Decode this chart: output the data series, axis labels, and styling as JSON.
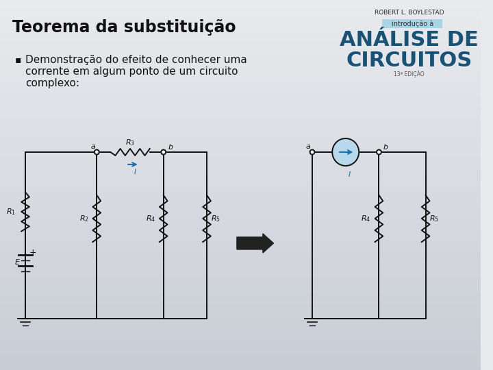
{
  "title": "Teorema da substituição",
  "bullet_text_lines": [
    "Demonstração do efeito de conhecer uma",
    "corrente em algum ponto de um circuito",
    "complexo:"
  ],
  "author": "ROBERT L. BOYLESTAD",
  "book_intro": "introdução à",
  "book_title_line1": "ANÁLISE DE",
  "book_title_line2": "CIRCUITOS",
  "book_edition": "13ª EDIÇÃO",
  "bg_color_top": "#e8eaed",
  "bg_color_bot": "#c8ccd4",
  "title_color": "#111111",
  "text_color": "#111111",
  "circuit_color": "#111111",
  "blue_title_color": "#1a5276",
  "light_blue_bg": "#a8d4e6",
  "arrow_color": "#222222",
  "current_arrow_color": "#1a6ea8",
  "cs_fill": "#b8d8ec"
}
